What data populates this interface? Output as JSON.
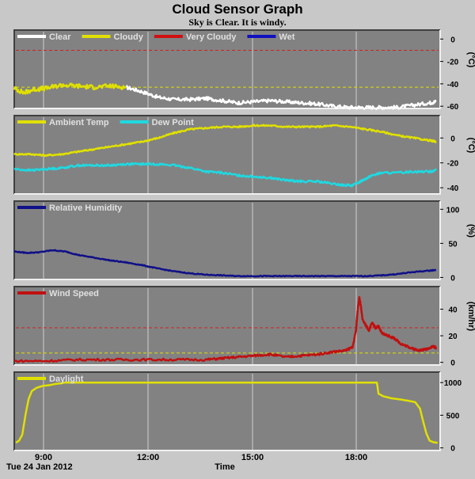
{
  "header": {
    "title": "Cloud Sensor Graph",
    "subtitle": "Sky is Clear. It is windy."
  },
  "footer": {
    "date": "Tue 24 Jan 2012",
    "xlabel": "Time"
  },
  "colors": {
    "plot_bg": "#828282",
    "page_bg": "#c8c8c8",
    "grid": "#d0d0d0",
    "ref_red": "#d02020",
    "ref_yellow": "#e0e000"
  },
  "chart_data": [
    {
      "type": "line",
      "id": "sky",
      "unit": "(°C)",
      "xlim": [
        8.0,
        21.33
      ],
      "x_ticks": [
        "9:00",
        "12:00",
        "15:00",
        "18:00"
      ],
      "ylim": [
        -62,
        8
      ],
      "yticks": [
        0,
        -20,
        -40,
        -60
      ],
      "reference_lines": [
        {
          "y": -10,
          "color": "#d02020"
        },
        {
          "y": -43,
          "color": "#e0e000"
        }
      ],
      "legend": [
        {
          "name": "Clear",
          "color": "#ffffff"
        },
        {
          "name": "Cloudy",
          "color": "#e0e000"
        },
        {
          "name": "Very Cloudy",
          "color": "#d01010"
        },
        {
          "name": "Wet",
          "color": "#1010c0"
        }
      ],
      "series": [
        {
          "name": "Clear",
          "color": "#ffffff",
          "noise": 1.5,
          "x": [
            11.5,
            12.0,
            12.5,
            13.0,
            13.5,
            14.0,
            14.5,
            15.0,
            15.5,
            16.0,
            16.5,
            17.0,
            17.5,
            18.0,
            18.5,
            19.0,
            19.5,
            20.0,
            20.5,
            21.0,
            21.2
          ],
          "y": [
            -43,
            -47,
            -52,
            -54,
            -54,
            -53,
            -55,
            -57,
            -56,
            -55,
            -56,
            -57,
            -58,
            -60,
            -61,
            -61,
            -61,
            -61,
            -59,
            -57,
            -56
          ]
        },
        {
          "name": "Cloudy",
          "color": "#e0e000",
          "noise": 2,
          "x": [
            8.0,
            8.3,
            8.6,
            9.0,
            9.5,
            10.0,
            10.5,
            11.0,
            11.5
          ],
          "y": [
            -44,
            -48,
            -45,
            -44,
            -41,
            -42,
            -43,
            -42,
            -43
          ]
        }
      ]
    },
    {
      "type": "line",
      "id": "temp",
      "unit": "(°C)",
      "xlim": [
        8.0,
        21.33
      ],
      "x_ticks": [
        "9:00",
        "12:00",
        "15:00",
        "18:00"
      ],
      "ylim": [
        -45,
        18
      ],
      "yticks": [
        0,
        -20,
        -40
      ],
      "legend": [
        {
          "name": "Ambient Temp",
          "color": "#e0e000"
        },
        {
          "name": "Dew Point",
          "color": "#20d8e0"
        }
      ],
      "series": [
        {
          "name": "Ambient Temp",
          "color": "#e0e000",
          "noise": 0.6,
          "x": [
            8.0,
            8.5,
            9.0,
            9.5,
            10.0,
            10.5,
            11.0,
            11.5,
            12.0,
            12.5,
            13.0,
            13.5,
            14.0,
            14.5,
            15.0,
            15.5,
            16.0,
            16.5,
            17.0,
            17.5,
            18.0,
            18.5,
            19.0,
            19.5,
            20.0,
            20.5,
            21.0,
            21.2
          ],
          "y": [
            -13,
            -13,
            -14,
            -13,
            -11,
            -9,
            -7,
            -5,
            -3,
            0,
            4,
            7,
            8,
            9,
            9,
            10,
            10,
            9,
            9,
            9,
            10,
            9,
            7,
            5,
            2,
            0,
            -2,
            -3
          ]
        },
        {
          "name": "Dew Point",
          "color": "#20d8e0",
          "noise": 0.8,
          "x": [
            8.0,
            8.5,
            9.0,
            9.5,
            10.0,
            10.5,
            11.0,
            11.5,
            12.0,
            12.5,
            13.0,
            13.5,
            14.0,
            14.5,
            15.0,
            15.5,
            16.0,
            16.5,
            17.0,
            17.5,
            18.0,
            18.3,
            18.6,
            18.9,
            19.2,
            19.5,
            20.0,
            20.5,
            21.0,
            21.2
          ],
          "y": [
            -25,
            -26,
            -25,
            -24,
            -22,
            -22,
            -22,
            -21,
            -21,
            -21,
            -22,
            -24,
            -27,
            -28,
            -30,
            -31,
            -32,
            -34,
            -35,
            -35,
            -37,
            -38,
            -38,
            -34,
            -30,
            -28,
            -28,
            -27,
            -27,
            -26
          ]
        }
      ]
    },
    {
      "type": "line",
      "id": "humidity",
      "unit": "(%)",
      "xlim": [
        8.0,
        21.33
      ],
      "x_ticks": [
        "9:00",
        "12:00",
        "15:00",
        "18:00"
      ],
      "ylim": [
        -3,
        112
      ],
      "yticks": [
        100,
        50,
        0
      ],
      "legend": [
        {
          "name": "Relative Humidity",
          "color": "#101088"
        }
      ],
      "series": [
        {
          "name": "Relative Humidity",
          "color": "#101088",
          "noise": 0.6,
          "x": [
            8.0,
            8.4,
            8.8,
            9.2,
            9.6,
            10.0,
            10.5,
            11.0,
            11.5,
            12.0,
            12.5,
            13.0,
            13.5,
            14.0,
            14.5,
            15.0,
            15.5,
            16.0,
            16.5,
            17.0,
            17.5,
            18.0,
            18.5,
            19.0,
            19.5,
            20.0,
            20.5,
            21.0,
            21.2
          ],
          "y": [
            38,
            36,
            37,
            40,
            38,
            33,
            29,
            25,
            22,
            18,
            13,
            9,
            6,
            4,
            3,
            2,
            2,
            2,
            2,
            2,
            2,
            2,
            2,
            2,
            3,
            5,
            8,
            10,
            11
          ]
        }
      ]
    },
    {
      "type": "line",
      "id": "wind",
      "unit": "(km/hr)",
      "xlim": [
        8.0,
        21.33
      ],
      "x_ticks": [
        "9:00",
        "12:00",
        "15:00",
        "18:00"
      ],
      "ylim": [
        -2,
        57
      ],
      "yticks": [
        40,
        20,
        0
      ],
      "reference_lines": [
        {
          "y": 26,
          "color": "#d02020"
        },
        {
          "y": 7,
          "color": "#e0e000"
        }
      ],
      "legend": [
        {
          "name": "Wind Speed",
          "color": "#c01010"
        }
      ],
      "series": [
        {
          "name": "Wind Speed",
          "color": "#c01010",
          "noise": 0.8,
          "x": [
            8.0,
            9.0,
            10.0,
            11.0,
            12.0,
            13.0,
            14.0,
            14.5,
            15.0,
            15.5,
            16.0,
            16.5,
            17.0,
            17.5,
            18.0,
            18.4,
            18.6,
            18.7,
            18.75,
            18.8,
            18.85,
            18.9,
            19.0,
            19.1,
            19.2,
            19.3,
            19.4,
            19.5,
            19.7,
            19.9,
            20.1,
            20.3,
            20.5,
            20.7,
            20.9,
            21.1,
            21.2
          ],
          "y": [
            1,
            1,
            2,
            2,
            2,
            2,
            2,
            3,
            4,
            5,
            6,
            4,
            5,
            6,
            8,
            9,
            12,
            25,
            40,
            49,
            42,
            32,
            28,
            24,
            30,
            26,
            27,
            22,
            20,
            18,
            14,
            12,
            10,
            9,
            10,
            12,
            11
          ]
        }
      ]
    },
    {
      "type": "line",
      "id": "daylight",
      "unit": "",
      "xlim": [
        8.0,
        21.33
      ],
      "x_ticks": [
        "9:00",
        "12:00",
        "15:00",
        "18:00"
      ],
      "ylim": [
        -40,
        1160
      ],
      "yticks": [
        1000,
        500,
        0
      ],
      "legend": [
        {
          "name": "Daylight",
          "color": "#e0e000"
        }
      ],
      "series": [
        {
          "name": "Daylight",
          "color": "#e0e000",
          "noise": 0,
          "x": [
            8.05,
            8.15,
            8.25,
            8.35,
            8.45,
            8.55,
            8.7,
            8.9,
            9.1,
            9.3,
            9.5,
            9.55,
            19.35,
            19.4,
            19.55,
            19.8,
            20.1,
            20.35,
            20.55,
            20.7,
            20.8,
            20.9,
            21.0,
            21.1,
            21.2,
            21.25
          ],
          "y": [
            80,
            110,
            200,
            500,
            750,
            870,
            920,
            950,
            960,
            980,
            990,
            1000,
            1000,
            830,
            790,
            760,
            740,
            720,
            700,
            600,
            400,
            220,
            110,
            90,
            80,
            80
          ]
        }
      ]
    }
  ]
}
